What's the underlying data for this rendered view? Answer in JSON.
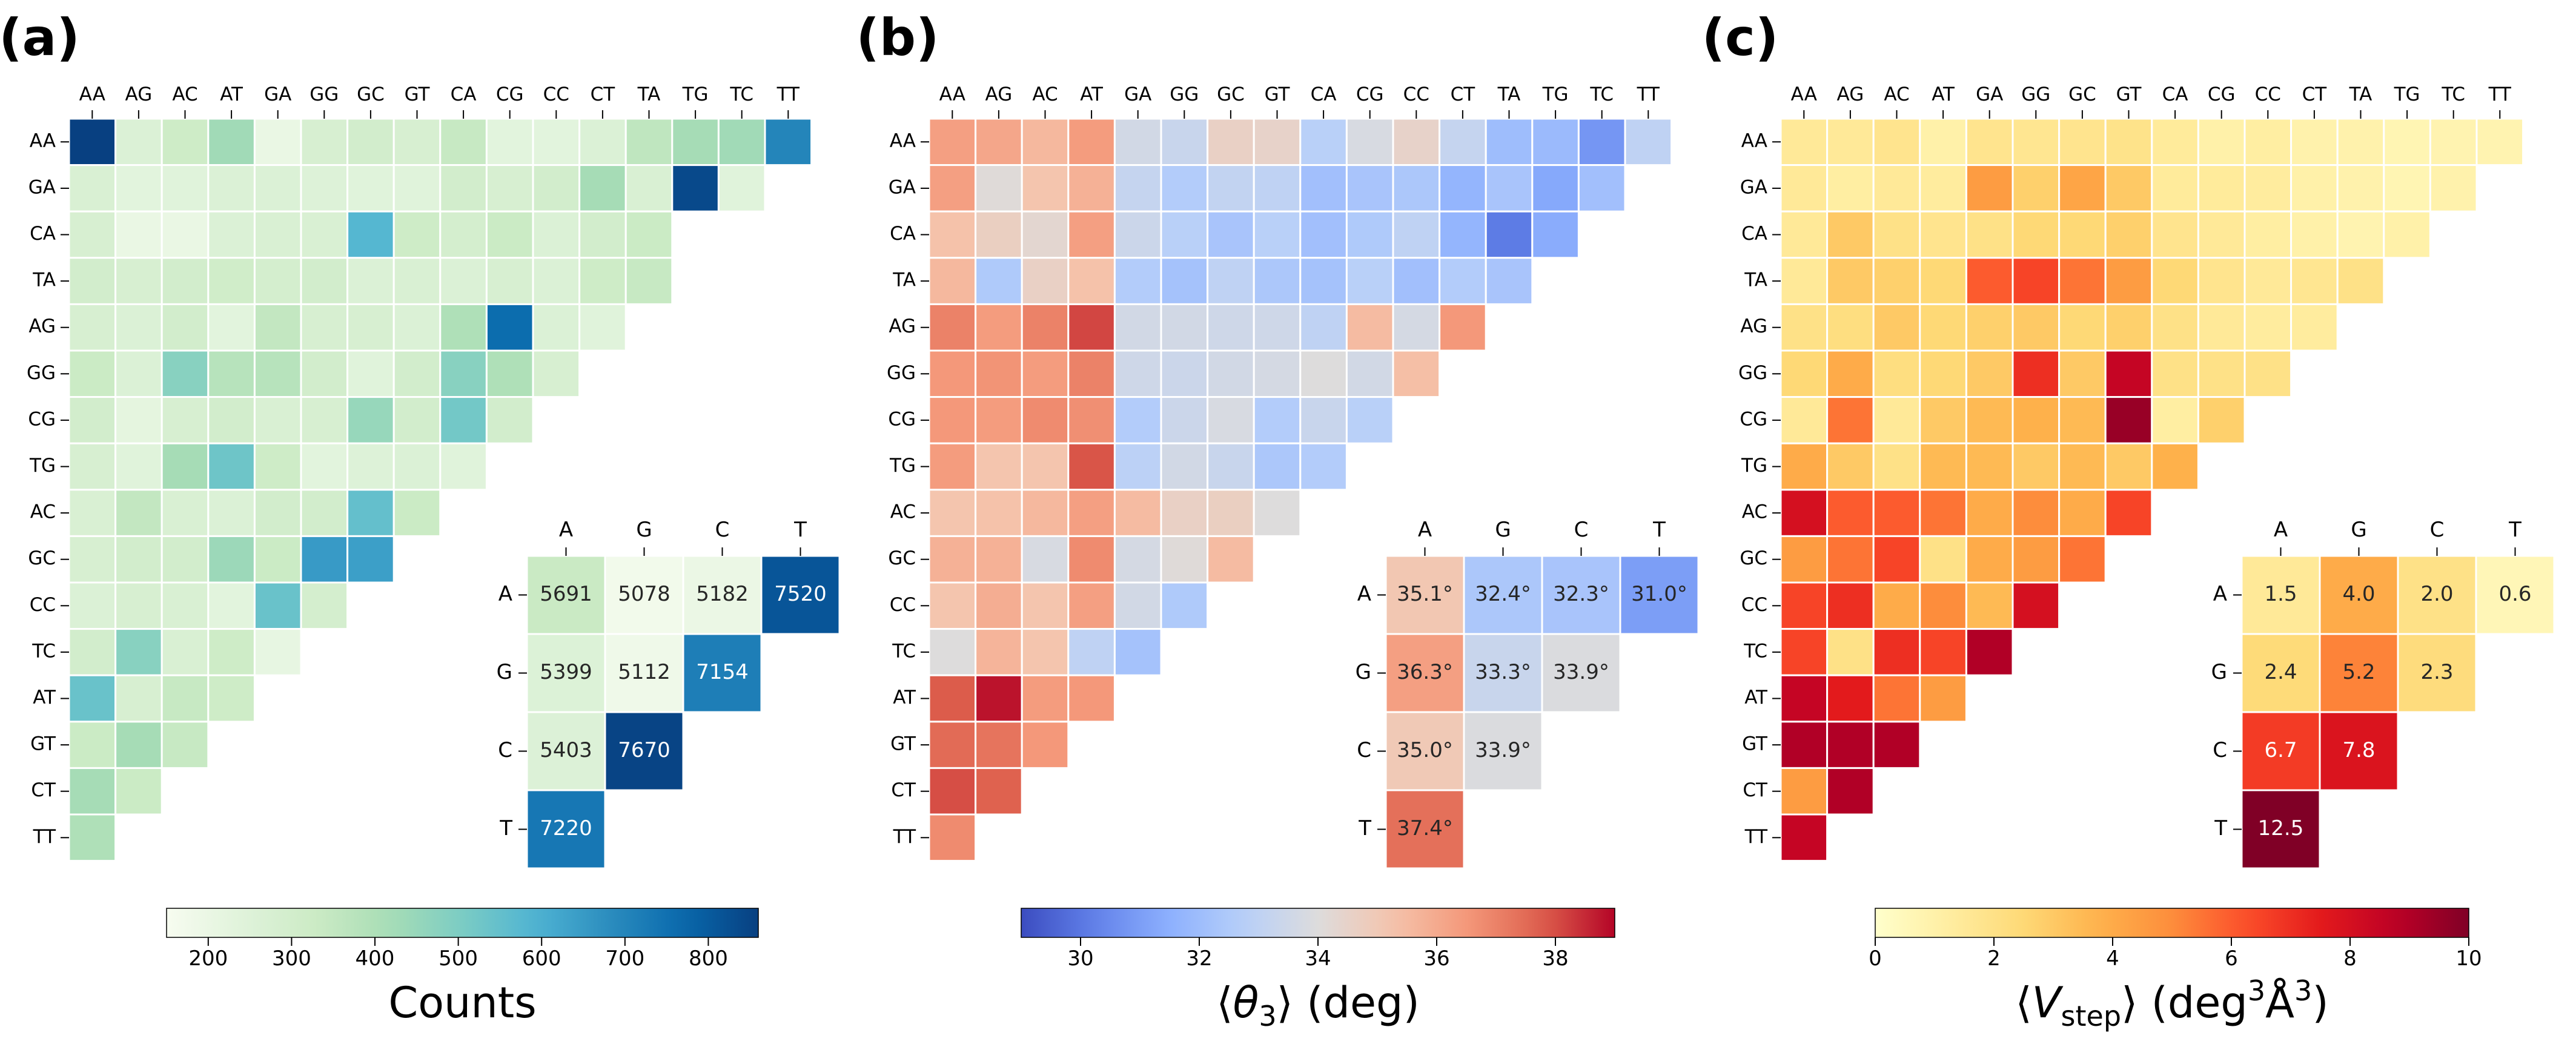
{
  "chart_data": [
    {
      "type": "heatmap",
      "panel_label": "(a)",
      "colormap": "GnBu",
      "xlabels": [
        "AA",
        "AG",
        "AC",
        "AT",
        "GA",
        "GG",
        "GC",
        "GT",
        "CA",
        "CG",
        "CC",
        "CT",
        "TA",
        "TG",
        "TC",
        "TT"
      ],
      "ylabels": [
        "AA",
        "GA",
        "CA",
        "TA",
        "AG",
        "GG",
        "CG",
        "TG",
        "AC",
        "GC",
        "CC",
        "TC",
        "AT",
        "GT",
        "CT",
        "TT"
      ],
      "vmin": 150,
      "vmax": 860,
      "matrix": [
        [
          860,
          260,
          320,
          430,
          200,
          280,
          300,
          280,
          340,
          230,
          230,
          260,
          360,
          420,
          430,
          700
        ],
        [
          270,
          230,
          240,
          260,
          260,
          250,
          240,
          240,
          300,
          280,
          300,
          420,
          270,
          840,
          240
        ],
        [
          280,
          200,
          200,
          260,
          270,
          270,
          580,
          320,
          290,
          330,
          260,
          300,
          330
        ],
        [
          300,
          280,
          300,
          310,
          290,
          300,
          260,
          270,
          260,
          280,
          260,
          320,
          340
        ],
        [
          280,
          260,
          300,
          230,
          350,
          280,
          280,
          260,
          400,
          760,
          260,
          240
        ],
        [
          330,
          260,
          480,
          380,
          380,
          300,
          240,
          300,
          480,
          400,
          280
        ],
        [
          300,
          220,
          280,
          300,
          270,
          280,
          450,
          300,
          520,
          300
        ],
        [
          280,
          240,
          420,
          530,
          320,
          230,
          250,
          260,
          240
        ],
        [
          270,
          350,
          270,
          260,
          300,
          300,
          550,
          330
        ],
        [
          280,
          300,
          300,
          440,
          330,
          650,
          640
        ],
        [
          260,
          280,
          270,
          230,
          540,
          290
        ],
        [
          300,
          480,
          270,
          320,
          210
        ],
        [
          540,
          280,
          340,
          320
        ],
        [
          330,
          420,
          340
        ],
        [
          420,
          330
        ],
        [
          400
        ]
      ],
      "inset": {
        "cols": [
          "A",
          "G",
          "C",
          "T"
        ],
        "rows": [
          "A",
          "G",
          "C",
          "T"
        ],
        "values": [
          [
            5691,
            5078,
            5182,
            7520
          ],
          [
            5399,
            5112,
            7154
          ],
          [
            5403,
            7670
          ],
          [
            7220
          ]
        ],
        "labels": [
          [
            "5691",
            "5078",
            "5182",
            "7520"
          ],
          [
            "5399",
            "5112",
            "7154"
          ],
          [
            "5403",
            "7670"
          ],
          [
            "7220"
          ]
        ],
        "vmin": 5000,
        "vmax": 7700
      },
      "colorbar": {
        "label": "Counts",
        "min": 150,
        "max": 860,
        "ticks": [
          200,
          300,
          400,
          500,
          600,
          700,
          800
        ]
      }
    },
    {
      "type": "heatmap",
      "panel_label": "(b)",
      "colormap": "coolwarm",
      "xlabels": [
        "AA",
        "AG",
        "AC",
        "AT",
        "GA",
        "GG",
        "GC",
        "GT",
        "CA",
        "CG",
        "CC",
        "CT",
        "TA",
        "TG",
        "TC",
        "TT"
      ],
      "ylabels": [
        "AA",
        "GA",
        "CA",
        "TA",
        "AG",
        "GG",
        "CG",
        "TG",
        "AC",
        "GC",
        "CC",
        "TC",
        "AT",
        "GT",
        "CT",
        "TT"
      ],
      "vmin": 29,
      "vmax": 39,
      "matrix": [
        [
          36.3,
          36.1,
          35.6,
          36.4,
          33.6,
          33.3,
          34.6,
          34.5,
          32.8,
          33.8,
          34.5,
          33.2,
          32.0,
          31.9,
          30.8,
          33.0
        ],
        [
          36.3,
          34.1,
          35.2,
          35.8,
          33.2,
          32.6,
          33.1,
          33.0,
          32.1,
          32.3,
          32.4,
          31.7,
          32.3,
          31.3,
          32.1
        ],
        [
          35.3,
          34.7,
          34.3,
          36.3,
          33.4,
          32.8,
          32.3,
          32.8,
          32.1,
          32.5,
          33.0,
          31.7,
          30.1,
          31.4
        ],
        [
          35.6,
          32.5,
          34.6,
          35.3,
          32.6,
          32.2,
          33.0,
          32.4,
          32.2,
          32.8,
          32.1,
          32.6,
          32.3
        ],
        [
          37.0,
          36.4,
          37.0,
          38.1,
          33.6,
          33.6,
          33.5,
          33.5,
          33.0,
          35.5,
          33.7,
          36.5
        ],
        [
          36.5,
          36.6,
          36.4,
          37.0,
          33.5,
          33.4,
          33.6,
          33.7,
          34.0,
          33.6,
          35.4
        ],
        [
          36.5,
          36.4,
          36.8,
          36.7,
          32.6,
          33.4,
          33.8,
          32.6,
          33.3,
          32.8
        ],
        [
          36.4,
          35.2,
          35.2,
          37.9,
          32.9,
          33.6,
          33.3,
          32.4,
          32.6
        ],
        [
          35.2,
          35.3,
          35.6,
          36.3,
          35.5,
          34.6,
          34.7,
          34.0
        ],
        [
          35.8,
          35.8,
          33.8,
          36.8,
          33.7,
          34.1,
          35.5
        ],
        [
          35.2,
          35.9,
          35.2,
          36.3,
          33.6,
          32.5
        ],
        [
          34.0,
          35.7,
          35.2,
          33.0,
          32.2
        ],
        [
          37.8,
          38.8,
          36.4,
          36.5
        ],
        [
          37.5,
          37.3,
          36.5
        ],
        [
          38.0,
          37.7
        ],
        [
          36.8
        ]
      ],
      "inset": {
        "cols": [
          "A",
          "G",
          "C",
          "T"
        ],
        "rows": [
          "A",
          "G",
          "C",
          "T"
        ],
        "values": [
          [
            35.1,
            32.4,
            32.3,
            31.0
          ],
          [
            36.3,
            33.3,
            33.9
          ],
          [
            35.0,
            33.9
          ],
          [
            37.4
          ]
        ],
        "labels": [
          [
            "35.1°",
            "32.4°",
            "32.3°",
            "31.0°"
          ],
          [
            "36.3°",
            "33.3°",
            "33.9°"
          ],
          [
            "35.0°",
            "33.9°"
          ],
          [
            "37.4°"
          ]
        ],
        "vmin": 29,
        "vmax": 39
      },
      "colorbar": {
        "label": "⟨θ₃⟩ (deg)",
        "min": 29,
        "max": 39,
        "ticks": [
          30,
          32,
          34,
          36,
          38
        ]
      }
    },
    {
      "type": "heatmap",
      "panel_label": "(c)",
      "colormap": "YlOrRd",
      "xlabels": [
        "AA",
        "AG",
        "AC",
        "AT",
        "GA",
        "GG",
        "GC",
        "GT",
        "CA",
        "CG",
        "CC",
        "CT",
        "TA",
        "TG",
        "TC",
        "TT"
      ],
      "ylabels": [
        "AA",
        "GA",
        "CA",
        "TA",
        "AG",
        "GG",
        "CG",
        "TG",
        "AC",
        "GC",
        "CC",
        "TC",
        "AT",
        "GT",
        "CT",
        "TT"
      ],
      "vmin": 0,
      "vmax": 10,
      "matrix": [
        [
          1.5,
          1.5,
          1.8,
          1.0,
          1.8,
          1.7,
          1.8,
          1.9,
          1.4,
          1.0,
          1.2,
          0.9,
          0.9,
          0.7,
          0.8,
          0.8
        ],
        [
          1.5,
          1.2,
          1.5,
          1.3,
          4.5,
          2.8,
          4.2,
          3.0,
          1.4,
          1.4,
          1.3,
          1.0,
          0.9,
          0.7,
          0.9
        ],
        [
          1.5,
          3.0,
          2.0,
          1.8,
          2.0,
          2.5,
          2.5,
          2.8,
          1.8,
          1.5,
          1.2,
          1.0,
          0.8,
          1.0
        ],
        [
          1.5,
          3.0,
          2.8,
          2.5,
          6.0,
          6.5,
          5.5,
          4.5,
          2.5,
          1.8,
          1.5,
          1.7,
          2.0
        ],
        [
          2.0,
          2.2,
          3.0,
          2.5,
          2.8,
          3.0,
          2.5,
          2.8,
          2.0,
          1.5,
          1.3,
          1.3
        ],
        [
          2.5,
          4.0,
          2.2,
          2.5,
          3.0,
          7.0,
          3.0,
          8.5,
          2.0,
          2.0,
          2.0
        ],
        [
          1.5,
          5.5,
          1.5,
          3.0,
          3.5,
          3.8,
          3.5,
          9.5,
          1.2,
          2.8
        ],
        [
          4.0,
          3.0,
          2.0,
          3.5,
          3.5,
          3.0,
          3.5,
          3.0,
          3.8
        ],
        [
          8.0,
          6.0,
          6.0,
          5.5,
          4.0,
          5.0,
          4.0,
          6.5
        ],
        [
          4.5,
          5.5,
          6.5,
          2.0,
          4.0,
          4.5,
          5.5
        ],
        [
          6.5,
          7.0,
          4.0,
          5.0,
          3.5,
          8.0
        ],
        [
          6.5,
          2.0,
          7.0,
          6.5,
          9.0
        ],
        [
          8.5,
          7.5,
          5.5,
          4.5
        ],
        [
          9.0,
          9.0,
          9.0
        ],
        [
          4.5,
          9.0
        ],
        [
          8.5
        ]
      ],
      "inset": {
        "cols": [
          "A",
          "G",
          "C",
          "T"
        ],
        "rows": [
          "A",
          "G",
          "C",
          "T"
        ],
        "values": [
          [
            1.5,
            4.0,
            2.0,
            0.6
          ],
          [
            2.4,
            5.2,
            2.3
          ],
          [
            6.7,
            7.8
          ],
          [
            12.5
          ]
        ],
        "labels": [
          [
            "1.5",
            "4.0",
            "2.0",
            "0.6"
          ],
          [
            "2.4",
            "5.2",
            "2.3"
          ],
          [
            "6.7",
            "7.8"
          ],
          [
            "12.5"
          ]
        ],
        "vmin": 0,
        "vmax": 10
      },
      "colorbar": {
        "label": "⟨V_step⟩ (deg³Å³)",
        "min": 0,
        "max": 10,
        "ticks": [
          0,
          2,
          4,
          6,
          8,
          10
        ]
      }
    }
  ]
}
